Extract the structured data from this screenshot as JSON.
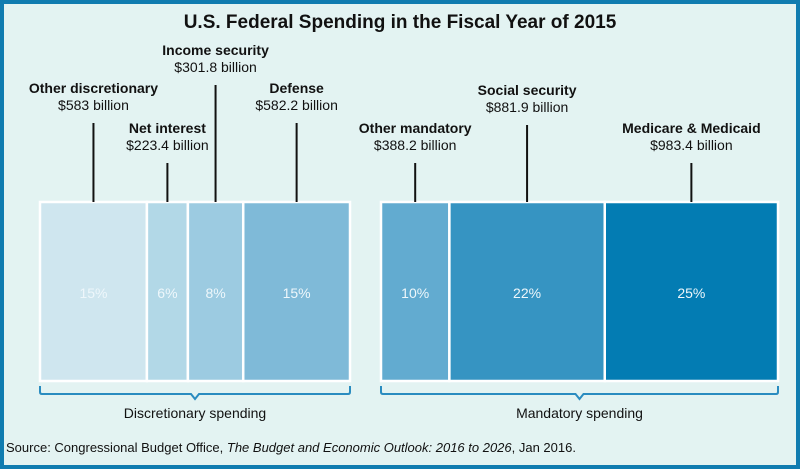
{
  "chart_data": {
    "type": "bar",
    "subtype": "stacked-horizontal-proportional",
    "title": "U.S. Federal Spending in the Fiscal Year of 2015",
    "groups": [
      {
        "name": "Discretionary spending",
        "items": [
          {
            "label": "Other discretionary",
            "amount": "$583 billion",
            "value": 583,
            "percent": "15%",
            "color": "#cfe6ef"
          },
          {
            "label": "Net interest",
            "amount": "$223.4 billion",
            "value": 223.4,
            "percent": "6%",
            "color": "#b2d8e7"
          },
          {
            "label": "Income security",
            "amount": "$301.8 billion",
            "value": 301.8,
            "percent": "8%",
            "color": "#9ccbe1"
          },
          {
            "label": "Defense",
            "amount": "$582.2 billion",
            "value": 582.2,
            "percent": "15%",
            "color": "#7fbad8"
          }
        ]
      },
      {
        "name": "Mandatory spending",
        "items": [
          {
            "label": "Other mandatory",
            "amount": "$388.2 billion",
            "value": 388.2,
            "percent": "10%",
            "color": "#62abd0"
          },
          {
            "label": "Social security",
            "amount": "$881.9 billion",
            "value": 881.9,
            "percent": "22%",
            "color": "#3694c2"
          },
          {
            "label": "Medicare & Medicaid",
            "amount": "$983.4 billion",
            "value": 983.4,
            "percent": "25%",
            "color": "#037cb3"
          }
        ]
      }
    ]
  },
  "source": {
    "prefix": "Source: Congressional Budget Office, ",
    "italic": "The Budget and Economic Outlook: 2016 to 2026",
    "suffix": ", Jan 2016."
  }
}
